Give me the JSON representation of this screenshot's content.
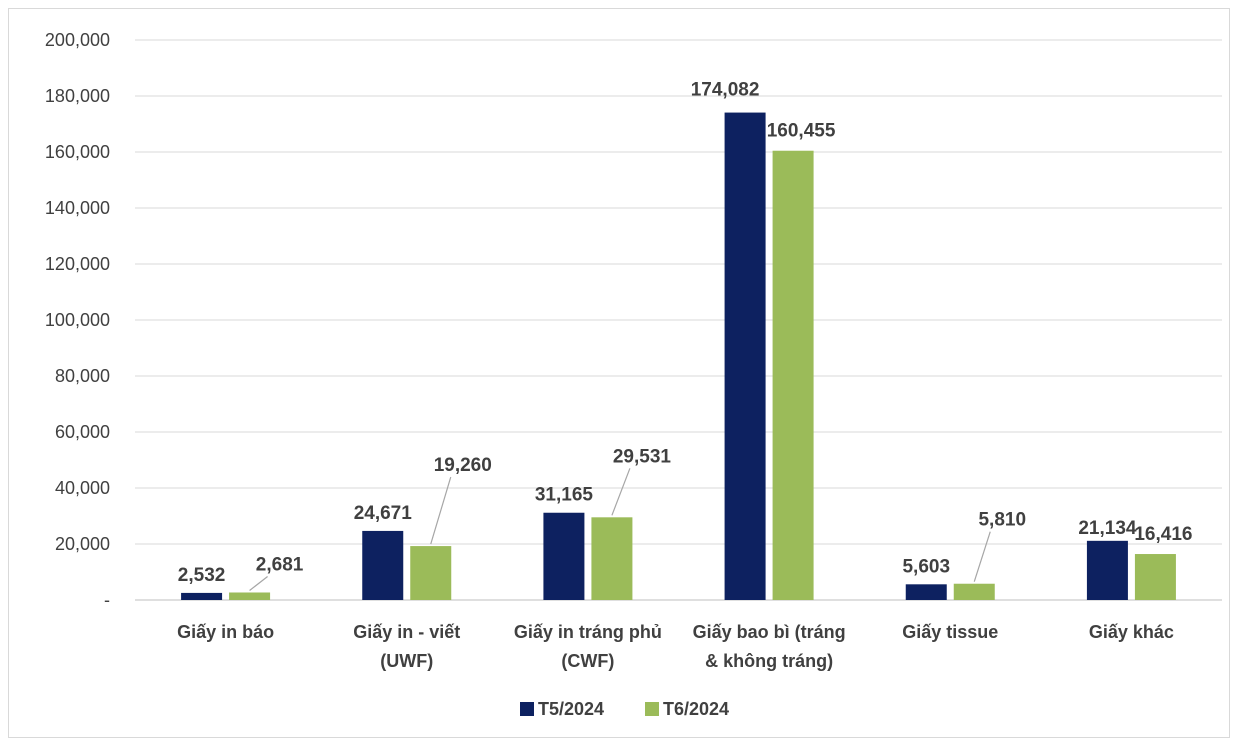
{
  "chart_data": {
    "type": "bar",
    "categories": [
      [
        "Giấy in báo"
      ],
      [
        "Giấy in - viết",
        "(UWF)"
      ],
      [
        "Giấy in tráng phủ",
        "(CWF)"
      ],
      [
        "Giấy bao bì (tráng",
        "& không tráng)"
      ],
      [
        "Giấy tissue"
      ],
      [
        "Giấy khác"
      ]
    ],
    "series": [
      {
        "name": "T5/2024",
        "color": "#0d2160",
        "values": [
          2532,
          24671,
          31165,
          174082,
          5603,
          21134
        ],
        "labels": [
          "2,532",
          "24,671",
          "31,165",
          "174,082",
          "5,603",
          "21,134"
        ]
      },
      {
        "name": "T6/2024",
        "color": "#9bbb59",
        "values": [
          2681,
          19260,
          29531,
          160455,
          5810,
          16416
        ],
        "labels": [
          "2,681",
          "19,260",
          "29,531",
          "160,455",
          "5,810",
          "16,416"
        ]
      }
    ],
    "ylim": [
      0,
      200000
    ],
    "yticks": [
      0,
      20000,
      40000,
      60000,
      80000,
      100000,
      120000,
      140000,
      160000,
      180000,
      200000
    ],
    "ytick_labels": [
      "-",
      "20,000",
      "40,000",
      "60,000",
      "80,000",
      "100,000",
      "120,000",
      "140,000",
      "160,000",
      "180,000",
      "200,000"
    ],
    "grid": true,
    "legend": "bottom-center",
    "title": "",
    "xlabel": "",
    "ylabel": ""
  }
}
